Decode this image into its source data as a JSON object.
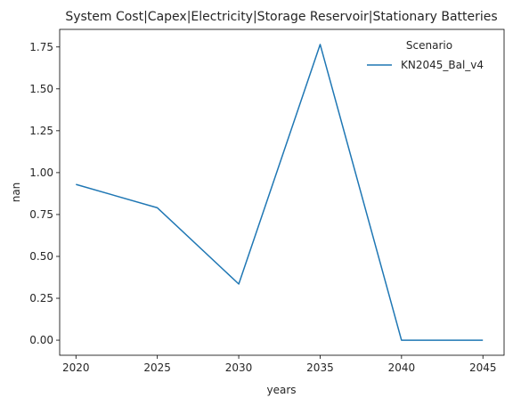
{
  "chart_data": {
    "type": "line",
    "title": "System Cost|Capex|Electricity|Storage Reservoir|Stationary Batteries",
    "xlabel": "years",
    "ylabel": "nan",
    "x": [
      2020,
      2025,
      2030,
      2035,
      2040,
      2045
    ],
    "x_ticks": [
      "2020",
      "2025",
      "2030",
      "2035",
      "2040",
      "2045"
    ],
    "y_ticks": [
      "0.00",
      "0.25",
      "0.50",
      "0.75",
      "1.00",
      "1.25",
      "1.50",
      "1.75"
    ],
    "xlim": [
      2019,
      2046.3
    ],
    "ylim": [
      -0.09,
      1.855
    ],
    "grid": false,
    "legend": {
      "title": "Scenario",
      "placement": "top-right"
    },
    "series": [
      {
        "name": "KN2045_Bal_v4",
        "color": "#1f77b4",
        "values": [
          0.93,
          0.79,
          0.335,
          1.765,
          0.0,
          0.0
        ]
      }
    ]
  }
}
